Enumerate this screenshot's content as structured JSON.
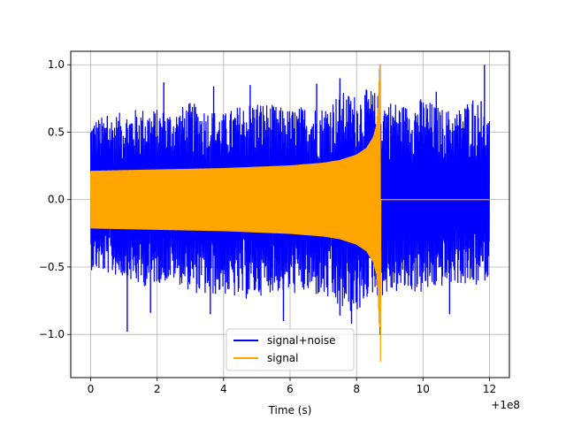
{
  "chart_data": {
    "type": "line",
    "title": "",
    "xlabel": "Time (s)",
    "ylabel": "",
    "x_offset_label": "+1e8",
    "xlim": [
      -0.6,
      12.6
    ],
    "ylim": [
      -1.32,
      1.1
    ],
    "xticks": [
      0,
      2,
      4,
      6,
      8,
      10,
      12
    ],
    "xtick_labels": [
      "0",
      "2",
      "4",
      "6",
      "8",
      "10",
      "12"
    ],
    "yticks": [
      -1.0,
      -0.5,
      0.0,
      0.5,
      1.0
    ],
    "ytick_labels": [
      "−1.0",
      "−0.5",
      "0.0",
      "0.5",
      "1.0"
    ],
    "grid": true,
    "legend_position": "bottom-center",
    "series": [
      {
        "name": "signal+noise",
        "color": "#0000ff",
        "x_range": [
          0,
          12
        ],
        "envelope": {
          "x": [
            0,
            0.5,
            1,
            1.5,
            2,
            2.5,
            3,
            3.5,
            4,
            4.5,
            5,
            5.5,
            6,
            6.5,
            7,
            7.5,
            8,
            8.4,
            8.7,
            9,
            9.5,
            10,
            10.5,
            11,
            11.5,
            12
          ],
          "upper": [
            0.6,
            0.62,
            0.65,
            0.68,
            0.67,
            0.66,
            0.72,
            0.68,
            0.64,
            0.7,
            0.74,
            0.7,
            0.67,
            0.7,
            0.69,
            0.8,
            0.78,
            0.83,
            0.77,
            0.74,
            0.7,
            0.76,
            0.68,
            0.66,
            0.77,
            0.6
          ],
          "lower": [
            -0.52,
            -0.55,
            -0.58,
            -0.65,
            -0.62,
            -0.6,
            -0.68,
            -0.72,
            -0.7,
            -0.75,
            -0.72,
            -0.68,
            -0.7,
            -0.7,
            -0.73,
            -0.82,
            -0.85,
            -0.7,
            -0.72,
            -0.7,
            -0.68,
            -0.7,
            -0.65,
            -0.62,
            -0.66,
            -0.58
          ]
        },
        "peaks": [
          {
            "x": 0.5,
            "y": 0.62
          },
          {
            "x": 1.1,
            "y": -0.98
          },
          {
            "x": 1.8,
            "y": -0.84
          },
          {
            "x": 2.2,
            "y": 0.87
          },
          {
            "x": 3.7,
            "y": 0.84
          },
          {
            "x": 3.6,
            "y": -0.85
          },
          {
            "x": 4.8,
            "y": 0.85
          },
          {
            "x": 5.8,
            "y": -0.9
          },
          {
            "x": 6.8,
            "y": 0.86
          },
          {
            "x": 7.5,
            "y": 0.9
          },
          {
            "x": 7.5,
            "y": -0.86
          },
          {
            "x": 7.85,
            "y": -0.92
          },
          {
            "x": 8.1,
            "y": -0.8
          },
          {
            "x": 10.4,
            "y": 0.8
          },
          {
            "x": 10.8,
            "y": -0.85
          },
          {
            "x": 11.75,
            "y": 0.73
          },
          {
            "x": 11.85,
            "y": 1.0
          }
        ]
      },
      {
        "name": "signal",
        "color": "#ffa500",
        "x_range": [
          0,
          12
        ],
        "merger_time": 8.72,
        "envelope": {
          "x": [
            0,
            1,
            2,
            3,
            4,
            5,
            6,
            7,
            7.5,
            8,
            8.3,
            8.5,
            8.6,
            8.65,
            8.7
          ],
          "upper": [
            0.21,
            0.215,
            0.22,
            0.225,
            0.23,
            0.24,
            0.25,
            0.27,
            0.29,
            0.33,
            0.38,
            0.46,
            0.55,
            0.7,
            1.0
          ]
        },
        "min_value": -1.2,
        "post_merger_value": 0.0
      }
    ]
  }
}
